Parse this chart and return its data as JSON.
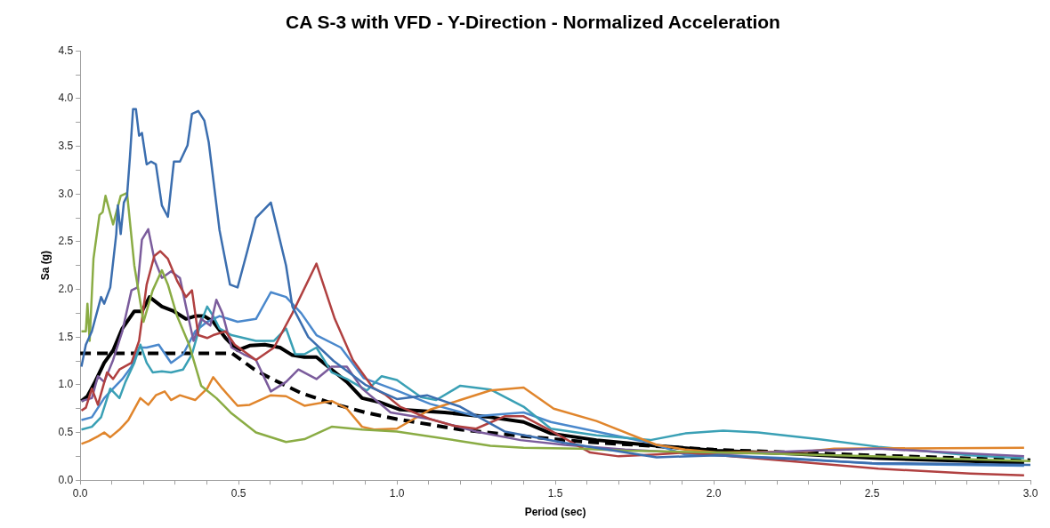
{
  "chart_data": {
    "type": "line",
    "title": "CA S-3 with VFD - Y-Direction - Normalized Acceleration",
    "xlabel": "Period (sec)",
    "ylabel": "Sa (g)",
    "xlim": [
      0,
      3.0
    ],
    "xticks": [
      {
        "value": 0,
        "label": "0.0"
      },
      {
        "value": 0.1,
        "label": null
      },
      {
        "value": 0.2,
        "label": null
      },
      {
        "value": 0.3,
        "label": null
      },
      {
        "value": 0.4,
        "label": null
      },
      {
        "value": 0.5,
        "label": "0.5"
      },
      {
        "value": 0.6,
        "label": null
      },
      {
        "value": 0.7,
        "label": null
      },
      {
        "value": 0.8,
        "label": null
      },
      {
        "value": 0.9,
        "label": null
      },
      {
        "value": 1.0,
        "label": "1.0"
      },
      {
        "value": 1.1,
        "label": null
      },
      {
        "value": 1.2,
        "label": null
      },
      {
        "value": 1.3,
        "label": null
      },
      {
        "value": 1.4,
        "label": null
      },
      {
        "value": 1.5,
        "label": "1.5"
      },
      {
        "value": 1.6,
        "label": null
      },
      {
        "value": 1.7,
        "label": null
      },
      {
        "value": 1.8,
        "label": null
      },
      {
        "value": 1.9,
        "label": null
      },
      {
        "value": 2.0,
        "label": "2.0"
      },
      {
        "value": 2.1,
        "label": null
      },
      {
        "value": 2.2,
        "label": null
      },
      {
        "value": 2.3,
        "label": null
      },
      {
        "value": 2.4,
        "label": null
      },
      {
        "value": 2.5,
        "label": "2.5"
      },
      {
        "value": 2.6,
        "label": null
      },
      {
        "value": 2.7,
        "label": null
      },
      {
        "value": 2.8,
        "label": null
      },
      {
        "value": 2.9,
        "label": null
      },
      {
        "value": 3.0,
        "label": "3.0"
      }
    ],
    "ylim": [
      0,
      4.5
    ],
    "yticks": [
      {
        "value": 0,
        "label": "0.0"
      },
      {
        "value": 0.25,
        "label": null
      },
      {
        "value": 0.5,
        "label": "0.5"
      },
      {
        "value": 0.75,
        "label": null
      },
      {
        "value": 1.0,
        "label": "1.0"
      },
      {
        "value": 1.25,
        "label": null
      },
      {
        "value": 1.5,
        "label": "1.5"
      },
      {
        "value": 1.75,
        "label": null
      },
      {
        "value": 2.0,
        "label": "2.0"
      },
      {
        "value": 2.25,
        "label": null
      },
      {
        "value": 2.5,
        "label": "2.5"
      },
      {
        "value": 2.75,
        "label": null
      },
      {
        "value": 3.0,
        "label": "3.0"
      },
      {
        "value": 3.25,
        "label": null
      },
      {
        "value": 3.5,
        "label": "3.5"
      },
      {
        "value": 3.75,
        "label": null
      },
      {
        "value": 4.0,
        "label": "4.0"
      },
      {
        "value": 4.25,
        "label": null
      },
      {
        "value": 4.5,
        "label": "4.5"
      }
    ],
    "legend": false,
    "marker": "none",
    "series": [
      {
        "color": "#3b6eaf",
        "x": [
          0.004,
          0.018,
          0.037,
          0.066,
          0.076,
          0.095,
          0.114,
          0.119,
          0.128,
          0.138,
          0.148,
          0.157,
          0.167,
          0.176,
          0.186,
          0.195,
          0.21,
          0.224,
          0.239,
          0.258,
          0.277,
          0.296,
          0.315,
          0.339,
          0.353,
          0.373,
          0.392,
          0.406,
          0.44,
          0.473,
          0.497,
          0.526,
          0.555,
          0.602,
          0.65,
          0.67,
          0.72,
          0.8,
          0.9,
          1.0,
          1.095,
          1.2,
          1.34,
          1.53,
          1.82,
          2.01,
          2.5,
          3.0
        ],
        "values": [
          1.19,
          1.42,
          1.56,
          1.92,
          1.85,
          2.02,
          2.58,
          2.88,
          2.58,
          2.91,
          2.98,
          3.38,
          3.89,
          3.89,
          3.61,
          3.64,
          3.31,
          3.34,
          3.31,
          2.88,
          2.76,
          3.34,
          3.34,
          3.51,
          3.84,
          3.87,
          3.77,
          3.54,
          2.62,
          2.05,
          2.02,
          2.38,
          2.75,
          2.91,
          2.25,
          1.82,
          1.5,
          1.25,
          1.0,
          0.85,
          0.89,
          0.77,
          0.51,
          0.39,
          0.24,
          0.26,
          0.18,
          0.16
        ]
      },
      {
        "color": "#8aac44",
        "x": [
          0.004,
          0.018,
          0.023,
          0.03,
          0.042,
          0.061,
          0.071,
          0.08,
          0.104,
          0.128,
          0.148,
          0.171,
          0.2,
          0.229,
          0.258,
          0.277,
          0.306,
          0.344,
          0.382,
          0.43,
          0.478,
          0.555,
          0.65,
          0.708,
          0.794,
          0.89,
          1.0,
          1.2,
          1.295,
          1.4,
          1.58,
          1.72,
          1.87,
          2.01,
          2.5,
          3.0
        ],
        "values": [
          1.56,
          1.56,
          1.85,
          1.46,
          2.32,
          2.78,
          2.81,
          2.98,
          2.68,
          2.98,
          3.01,
          2.25,
          1.66,
          1.99,
          2.2,
          2.05,
          1.72,
          1.42,
          0.99,
          0.86,
          0.7,
          0.5,
          0.4,
          0.43,
          0.56,
          0.53,
          0.51,
          0.41,
          0.36,
          0.34,
          0.33,
          0.31,
          0.3,
          0.29,
          0.25,
          0.2
        ]
      },
      {
        "color": "#b04040",
        "x": [
          0.004,
          0.018,
          0.037,
          0.056,
          0.085,
          0.104,
          0.124,
          0.162,
          0.186,
          0.21,
          0.234,
          0.253,
          0.277,
          0.306,
          0.334,
          0.353,
          0.373,
          0.401,
          0.42,
          0.459,
          0.488,
          0.555,
          0.612,
          0.67,
          0.746,
          0.804,
          0.861,
          0.924,
          0.962,
          1.01,
          1.105,
          1.18,
          1.25,
          1.34,
          1.4,
          1.49,
          1.61,
          1.7,
          1.82,
          1.91,
          2.24,
          2.52,
          2.81,
          2.98
        ],
        "values": [
          0.73,
          0.76,
          0.96,
          0.79,
          1.13,
          1.06,
          1.16,
          1.23,
          1.46,
          2.05,
          2.35,
          2.4,
          2.32,
          2.09,
          1.92,
          1.99,
          1.52,
          1.49,
          1.52,
          1.56,
          1.42,
          1.26,
          1.39,
          1.75,
          2.27,
          1.69,
          1.26,
          0.97,
          0.9,
          0.77,
          0.64,
          0.57,
          0.54,
          0.67,
          0.67,
          0.51,
          0.29,
          0.25,
          0.27,
          0.29,
          0.2,
          0.12,
          0.07,
          0.05
        ]
      },
      {
        "color": "#7b5c9c",
        "x": [
          0.004,
          0.037,
          0.056,
          0.076,
          0.104,
          0.133,
          0.162,
          0.181,
          0.195,
          0.215,
          0.234,
          0.258,
          0.287,
          0.315,
          0.334,
          0.358,
          0.382,
          0.411,
          0.43,
          0.449,
          0.478,
          0.516,
          0.555,
          0.602,
          0.65,
          0.689,
          0.746,
          0.794,
          0.842,
          0.89,
          0.98,
          1.105,
          1.25,
          1.39,
          1.53,
          1.72,
          2.01,
          2.3,
          2.52,
          2.81,
          2.98
        ],
        "values": [
          0.83,
          0.86,
          1.09,
          1.03,
          1.26,
          1.56,
          1.99,
          2.02,
          2.52,
          2.63,
          2.32,
          2.12,
          2.19,
          2.12,
          1.82,
          1.46,
          1.69,
          1.62,
          1.89,
          1.75,
          1.39,
          1.32,
          1.26,
          0.93,
          1.03,
          1.16,
          1.06,
          1.19,
          1.19,
          0.96,
          0.71,
          0.64,
          0.51,
          0.42,
          0.37,
          0.32,
          0.27,
          0.31,
          0.33,
          0.28,
          0.25
        ]
      },
      {
        "color": "#e0852c",
        "x": [
          0.004,
          0.028,
          0.056,
          0.076,
          0.095,
          0.124,
          0.152,
          0.19,
          0.215,
          0.239,
          0.267,
          0.287,
          0.315,
          0.363,
          0.401,
          0.42,
          0.449,
          0.497,
          0.535,
          0.602,
          0.65,
          0.708,
          0.794,
          0.842,
          0.89,
          0.928,
          1.0,
          1.105,
          1.2,
          1.295,
          1.4,
          1.495,
          1.63,
          1.82,
          1.91,
          2.01,
          2.29,
          2.38,
          2.98
        ],
        "values": [
          0.38,
          0.41,
          0.46,
          0.5,
          0.45,
          0.53,
          0.63,
          0.86,
          0.79,
          0.89,
          0.93,
          0.84,
          0.89,
          0.84,
          0.96,
          1.08,
          0.96,
          0.78,
          0.79,
          0.89,
          0.88,
          0.78,
          0.83,
          0.75,
          0.56,
          0.53,
          0.54,
          0.74,
          0.84,
          0.94,
          0.97,
          0.75,
          0.62,
          0.37,
          0.32,
          0.29,
          0.3,
          0.33,
          0.34
        ]
      },
      {
        "color": "#3aa0b5",
        "x": [
          0.004,
          0.037,
          0.066,
          0.095,
          0.124,
          0.143,
          0.171,
          0.19,
          0.21,
          0.229,
          0.258,
          0.287,
          0.325,
          0.353,
          0.382,
          0.401,
          0.42,
          0.44,
          0.478,
          0.555,
          0.612,
          0.65,
          0.679,
          0.708,
          0.746,
          0.794,
          0.842,
          0.905,
          0.952,
          1.0,
          1.076,
          1.124,
          1.2,
          1.295,
          1.4,
          1.486,
          1.63,
          1.8,
          1.91,
          2.03,
          2.14,
          2.33,
          2.52,
          2.81,
          2.98
        ],
        "values": [
          0.53,
          0.56,
          0.66,
          0.96,
          0.86,
          1.03,
          1.23,
          1.42,
          1.23,
          1.13,
          1.14,
          1.13,
          1.16,
          1.32,
          1.66,
          1.82,
          1.72,
          1.59,
          1.52,
          1.46,
          1.46,
          1.59,
          1.32,
          1.32,
          1.39,
          1.13,
          1.06,
          0.94,
          1.09,
          1.05,
          0.87,
          0.84,
          0.99,
          0.95,
          0.77,
          0.54,
          0.47,
          0.42,
          0.49,
          0.52,
          0.5,
          0.43,
          0.35,
          0.26,
          0.23
        ]
      },
      {
        "color": "#4a88cc",
        "x": [
          0.004,
          0.037,
          0.076,
          0.104,
          0.133,
          0.162,
          0.186,
          0.21,
          0.248,
          0.287,
          0.325,
          0.363,
          0.401,
          0.44,
          0.497,
          0.555,
          0.602,
          0.65,
          0.698,
          0.746,
          0.823,
          0.895,
          1.0,
          1.105,
          1.25,
          1.4,
          1.486,
          1.63,
          1.8,
          1.91,
          2.01,
          2.24,
          2.52,
          2.98
        ],
        "values": [
          0.63,
          0.66,
          0.86,
          0.96,
          1.06,
          1.19,
          1.39,
          1.39,
          1.42,
          1.23,
          1.32,
          1.56,
          1.66,
          1.72,
          1.66,
          1.69,
          1.97,
          1.92,
          1.75,
          1.52,
          1.39,
          1.07,
          0.94,
          0.8,
          0.67,
          0.71,
          0.61,
          0.51,
          0.39,
          0.27,
          0.26,
          0.23,
          0.17,
          0.15
        ]
      },
      {
        "color": "#000000",
        "line_style": "dashed",
        "x": [
          0,
          0.48,
          0.55,
          0.6,
          0.7,
          0.8,
          0.9,
          1.0,
          1.2,
          1.4,
          1.6,
          1.8,
          2.0,
          2.5,
          3.0
        ],
        "values": [
          1.33,
          1.33,
          1.16,
          1.07,
          0.91,
          0.8,
          0.71,
          0.64,
          0.53,
          0.46,
          0.4,
          0.36,
          0.32,
          0.26,
          0.21
        ]
      },
      {
        "color": "#000000",
        "x": [
          0.004,
          0.023,
          0.047,
          0.076,
          0.104,
          0.133,
          0.171,
          0.195,
          0.219,
          0.258,
          0.296,
          0.334,
          0.363,
          0.392,
          0.42,
          0.459,
          0.497,
          0.535,
          0.583,
          0.631,
          0.67,
          0.708,
          0.746,
          0.794,
          0.842,
          0.89,
          0.943,
          1.01,
          1.15,
          1.295,
          1.4,
          1.486,
          1.63,
          1.82,
          2.01,
          2.24,
          2.52,
          2.81,
          2.98
        ],
        "values": [
          0.83,
          0.88,
          1.03,
          1.23,
          1.36,
          1.59,
          1.77,
          1.77,
          1.92,
          1.82,
          1.77,
          1.69,
          1.72,
          1.72,
          1.66,
          1.49,
          1.36,
          1.41,
          1.42,
          1.39,
          1.31,
          1.29,
          1.29,
          1.16,
          1.03,
          0.86,
          0.82,
          0.74,
          0.71,
          0.66,
          0.61,
          0.49,
          0.42,
          0.36,
          0.31,
          0.28,
          0.23,
          0.2,
          0.18
        ]
      }
    ]
  }
}
